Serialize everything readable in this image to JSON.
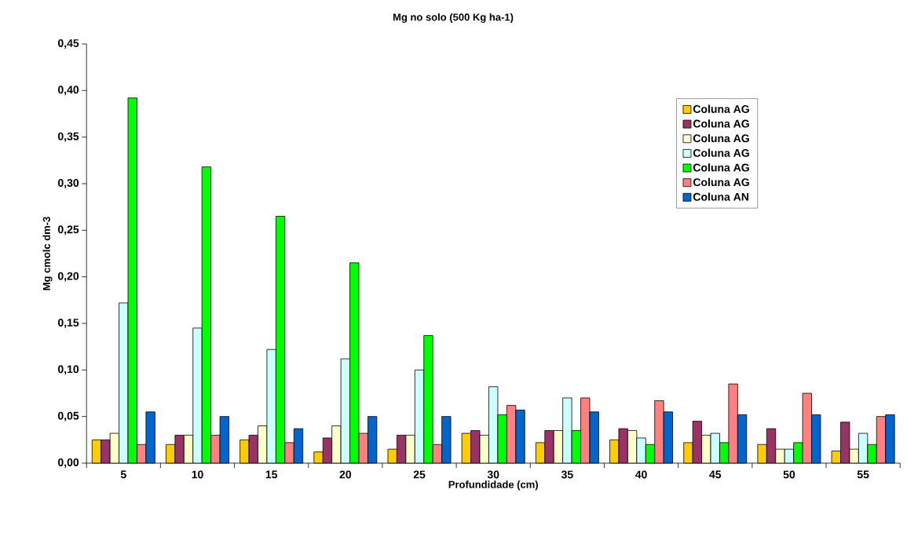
{
  "chart_data": {
    "type": "bar",
    "title": "Mg no solo (500 Kg ha-1)",
    "xlabel": "Profundidade (cm)",
    "ylabel": "Mg cmolc dm-3",
    "categories": [
      "5",
      "10",
      "15",
      "20",
      "25",
      "30",
      "35",
      "40",
      "45",
      "50",
      "55"
    ],
    "series": [
      {
        "name": "Coluna AG",
        "color": "#ffcc00",
        "values": [
          0.025,
          0.02,
          0.025,
          0.012,
          0.015,
          0.032,
          0.022,
          0.025,
          0.022,
          0.02,
          0.013
        ]
      },
      {
        "name": "Coluna AG",
        "color": "#993366",
        "values": [
          0.025,
          0.03,
          0.03,
          0.027,
          0.03,
          0.035,
          0.035,
          0.037,
          0.045,
          0.037,
          0.044
        ]
      },
      {
        "name": "Coluna AG",
        "color": "#ffffcc",
        "values": [
          0.032,
          0.03,
          0.04,
          0.04,
          0.03,
          0.03,
          0.035,
          0.035,
          0.03,
          0.015,
          0.015
        ]
      },
      {
        "name": "Coluna AG",
        "color": "#ccffff",
        "values": [
          0.172,
          0.145,
          0.122,
          0.112,
          0.1,
          0.082,
          0.07,
          0.027,
          0.032,
          0.015,
          0.032
        ]
      },
      {
        "name": "Coluna AG",
        "color": "#00ff00",
        "values": [
          0.392,
          0.318,
          0.265,
          0.215,
          0.137,
          0.052,
          0.035,
          0.02,
          0.022,
          0.022,
          0.02
        ]
      },
      {
        "name": "Coluna AG",
        "color": "#ff8080",
        "values": [
          0.02,
          0.03,
          0.022,
          0.032,
          0.02,
          0.062,
          0.07,
          0.067,
          0.085,
          0.075,
          0.05
        ]
      },
      {
        "name": "Coluna AN",
        "color": "#0066cc",
        "values": [
          0.055,
          0.05,
          0.037,
          0.05,
          0.05,
          0.057,
          0.055,
          0.055,
          0.052,
          0.052,
          0.052
        ]
      }
    ],
    "ylim": [
      0,
      0.45
    ],
    "yticks": [
      {
        "value": 0,
        "label": "0,00"
      },
      {
        "value": 0.05,
        "label": "0,05"
      },
      {
        "value": 0.1,
        "label": "0,10"
      },
      {
        "value": 0.15,
        "label": "0,15"
      },
      {
        "value": 0.2,
        "label": "0,20"
      },
      {
        "value": 0.25,
        "label": "0,25"
      },
      {
        "value": 0.3,
        "label": "0,30"
      },
      {
        "value": 0.35,
        "label": "0,35"
      },
      {
        "value": 0.4,
        "label": "0,40"
      },
      {
        "value": 0.45,
        "label": "0,45"
      }
    ],
    "grid": false,
    "legend": "top right"
  }
}
